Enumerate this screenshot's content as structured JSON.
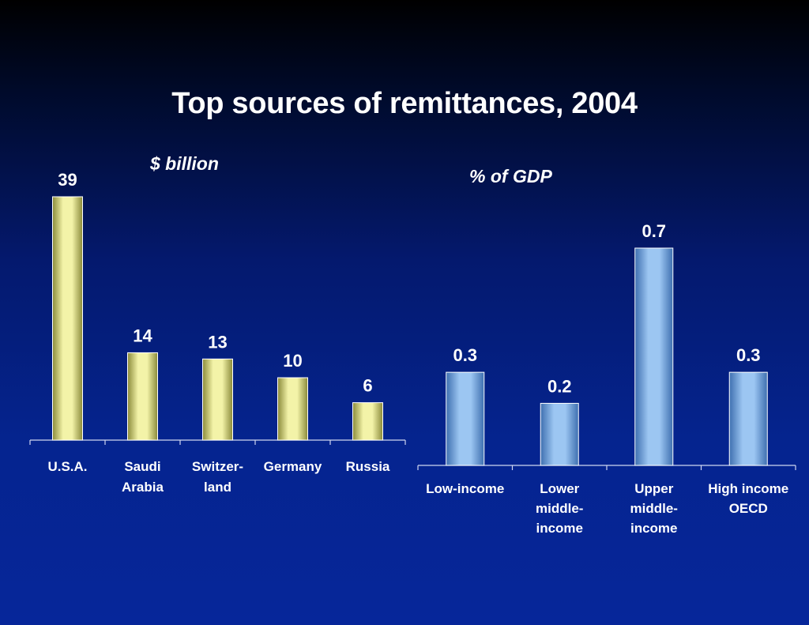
{
  "title": "Top sources of remittances, 2004",
  "colors": {
    "left_bar": "#e8e890",
    "right_bar": "#7fb0e8",
    "axis": "#cfd6f0"
  },
  "chart_data": [
    {
      "type": "bar",
      "title": "$ billion",
      "categories": [
        [
          "U.S.A."
        ],
        [
          "Saudi",
          "Arabia"
        ],
        [
          "Switzer-",
          "land"
        ],
        [
          "Germany"
        ],
        [
          "Russia"
        ]
      ],
      "values": [
        39,
        14,
        13,
        10,
        6
      ],
      "value_labels": [
        "39",
        "14",
        "13",
        "10",
        "6"
      ],
      "ylim": [
        0,
        39
      ]
    },
    {
      "type": "bar",
      "title": "% of GDP",
      "categories": [
        [
          "Low-income"
        ],
        [
          "Lower",
          "middle-",
          "income"
        ],
        [
          "Upper",
          "middle-",
          "income"
        ],
        [
          "High income",
          "OECD"
        ]
      ],
      "values": [
        0.3,
        0.2,
        0.7,
        0.3
      ],
      "value_labels": [
        "0.3",
        "0.2",
        "0.7",
        "0.3"
      ],
      "ylim": [
        0,
        0.7
      ]
    }
  ]
}
